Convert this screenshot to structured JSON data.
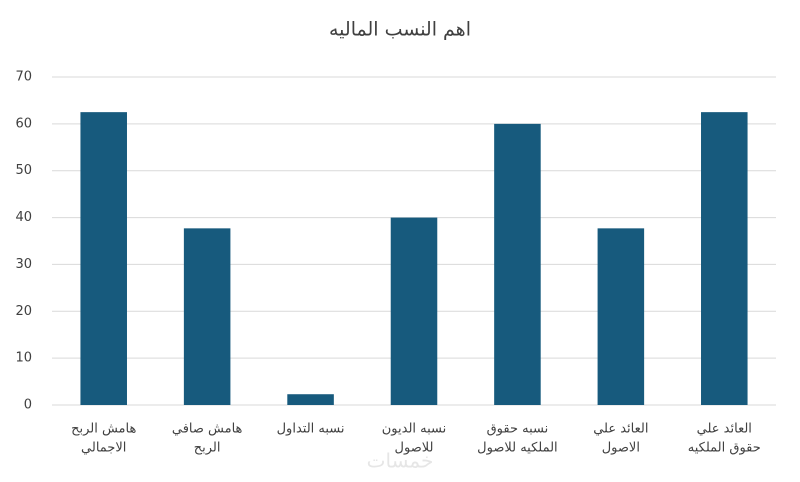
{
  "chart_data": {
    "type": "bar",
    "title": "اهم النسب الماليه",
    "categories": [
      [
        "هامش الربح",
        "الاجمالي"
      ],
      [
        "هامش صافي",
        "الربح"
      ],
      [
        "نسبه التداول"
      ],
      [
        "نسبه الديون",
        "للاصول"
      ],
      [
        "نسبه حقوق",
        "الملكيه للاصول"
      ],
      [
        "العائد علي",
        "الاصول"
      ],
      [
        "العائد علي",
        "حقوق الملكيه"
      ]
    ],
    "values": [
      62.5,
      37.7,
      2.3,
      40,
      60,
      37.7,
      62.5
    ],
    "color": "#175a7d",
    "ylim": [
      0,
      70
    ],
    "yticks": [
      0,
      10,
      20,
      30,
      40,
      50,
      60,
      70
    ],
    "grid": true,
    "watermark": "خمسات"
  }
}
